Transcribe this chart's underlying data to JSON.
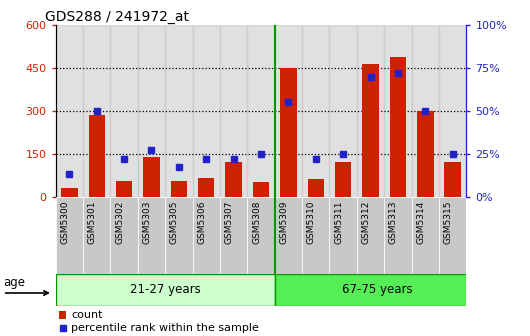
{
  "title": "GDS288 / 241972_at",
  "samples": [
    "GSM5300",
    "GSM5301",
    "GSM5302",
    "GSM5303",
    "GSM5305",
    "GSM5306",
    "GSM5307",
    "GSM5308",
    "GSM5309",
    "GSM5310",
    "GSM5311",
    "GSM5312",
    "GSM5313",
    "GSM5314",
    "GSM5315"
  ],
  "counts": [
    30,
    285,
    55,
    140,
    55,
    65,
    120,
    50,
    450,
    60,
    120,
    465,
    490,
    300,
    120
  ],
  "percentiles": [
    13,
    50,
    22,
    27,
    17,
    22,
    22,
    25,
    55,
    22,
    25,
    70,
    72,
    50,
    25
  ],
  "bar_color": "#cc2200",
  "dot_color": "#2222cc",
  "ylim_left": [
    0,
    600
  ],
  "ylim_right": [
    0,
    100
  ],
  "yticks_left": [
    0,
    150,
    300,
    450,
    600
  ],
  "yticks_right": [
    0,
    25,
    50,
    75,
    100
  ],
  "yticklabels_left": [
    "0",
    "150",
    "300",
    "450",
    "600"
  ],
  "yticklabels_right": [
    "0%",
    "25%",
    "50%",
    "75%",
    "100%"
  ],
  "group1_label": "21-27 years",
  "group2_label": "67-75 years",
  "group1_n": 8,
  "group2_n": 7,
  "age_label": "age",
  "legend_count": "count",
  "legend_percentile": "percentile rank within the sample",
  "bg_color_group1": "#ccffcc",
  "bg_color_group2": "#55ee55",
  "col_bg_color": "#c8c8c8",
  "grid_color": "black",
  "separator_color": "#009900",
  "bar_width": 0.6
}
